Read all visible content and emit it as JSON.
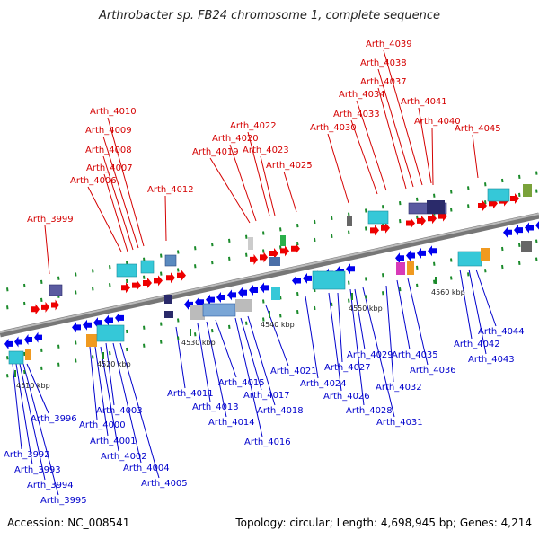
{
  "title": "Arthrobacter sp. FB24 chromosome 1, complete sequence",
  "accession": "Accession: NC_008541",
  "summary": "Topology: circular; Length: 4,698,945 bp; Genes: 4,214",
  "colors": {
    "forward_label": "#d40000",
    "reverse_label": "#0000cc",
    "forward_arrow": "#ee0000",
    "reverse_arrow": "#0000ee",
    "backbone": "#888888"
  },
  "kbp_labels": [
    "4510 kbp",
    "4520 kbp",
    "4530 kbp",
    "4540 kbp",
    "4550 kbp",
    "4560 kbp"
  ],
  "genes_top": [
    "Arth_3999",
    "Arth_4006",
    "Arth_4007",
    "Arth_4008",
    "Arth_4009",
    "Arth_4010",
    "Arth_4012",
    "Arth_4019",
    "Arth_4020",
    "Arth_4022",
    "Arth_4023",
    "Arth_4025",
    "Arth_4030",
    "Arth_4033",
    "Arth_4034",
    "Arth_4037",
    "Arth_4038",
    "Arth_4039",
    "Arth_4040",
    "Arth_4041",
    "Arth_4045"
  ],
  "genes_bottom": [
    "Arth_3992",
    "Arth_3993",
    "Arth_3994",
    "Arth_3995",
    "Arth_3996",
    "Arth_4000",
    "Arth_4001",
    "Arth_4002",
    "Arth_4003",
    "Arth_4004",
    "Arth_4005",
    "Arth_4011",
    "Arth_4013",
    "Arth_4014",
    "Arth_4015",
    "Arth_4016",
    "Arth_4017",
    "Arth_4018",
    "Arth_4021",
    "Arth_4024",
    "Arth_4026",
    "Arth_4027",
    "Arth_4028",
    "Arth_4029",
    "Arth_4031",
    "Arth_4032",
    "Arth_4035",
    "Arth_4036",
    "Arth_4042",
    "Arth_4043",
    "Arth_4044"
  ]
}
